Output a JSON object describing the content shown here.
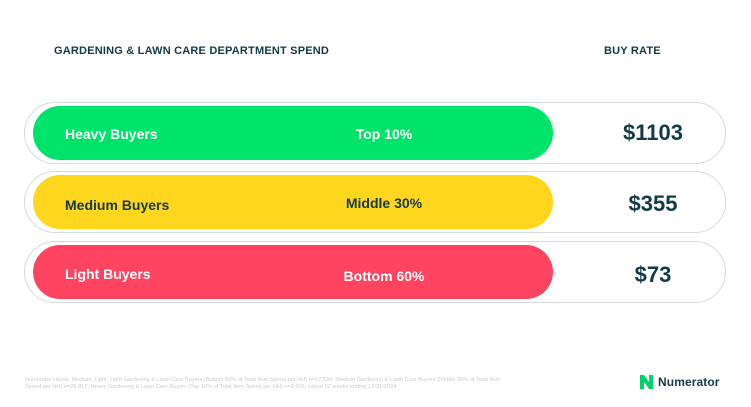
{
  "header": {
    "left_title": "GARDENING & LAWN CARE DEPARTMENT SPEND",
    "right_title": "BUY RATE"
  },
  "segments": [
    {
      "name": "Heavy Buyers",
      "share": "Top 10%",
      "buy_rate": "$1103",
      "color": "#00e36b",
      "text_color": "#ffffff"
    },
    {
      "name": "Medium Buyers",
      "share": "Middle 30%",
      "buy_rate": "$355",
      "color": "#ffd61e",
      "text_color": "#123b46"
    },
    {
      "name": "Light Buyers",
      "share": "Bottom 60%",
      "buy_rate": "$73",
      "color": "#ff4461",
      "text_color": "#ffffff"
    }
  ],
  "footnote": "Numerator Heavy, Medium, Light; Light Gardening & Lawn Care Buyers (Bottom 60% of Total Item Spend per HH) n=57,534; Medium Gardening & Lawn Care Buyers (Middle 30% of Total Item Spend per HH) n=28,817; Heavy Gardening & Lawn Care Buyers (Top 10% of Total Item Spend per HH) n=9,606; Latest 52 weeks ending 12/31/2024",
  "brand": {
    "name": "Numerator",
    "logo_icon": "numerator-n-icon",
    "mark_color": "#00d26a",
    "text_color": "#123b46"
  }
}
